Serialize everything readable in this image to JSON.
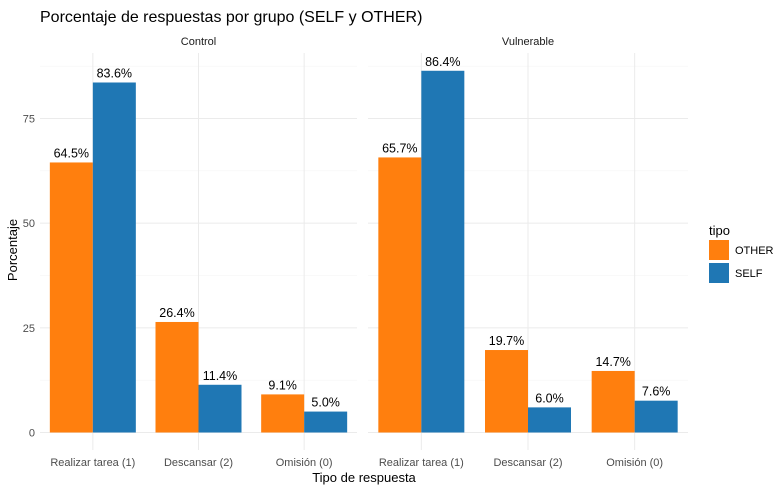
{
  "chart_data": {
    "type": "bar",
    "title": "Porcentaje de respuestas por grupo (SELF y OTHER)",
    "xlabel": "Tipo de respuesta",
    "ylabel": "Porcentaje",
    "ylim": [
      0,
      90
    ],
    "yticks": [
      0,
      25,
      50,
      75
    ],
    "categories": [
      "Realizar tarea (1)",
      "Descansar (2)",
      "Omisión (0)"
    ],
    "grid": true,
    "legend": {
      "title": "tipo",
      "position": "right",
      "entries": [
        "OTHER",
        "SELF"
      ]
    },
    "colors": {
      "OTHER": "#ff7f0e",
      "SELF": "#1f77b4"
    },
    "panels": [
      {
        "name": "Control",
        "series": [
          {
            "name": "OTHER",
            "values": [
              64.5,
              26.4,
              9.1
            ],
            "labels": [
              "64.5%",
              "26.4%",
              "9.1%"
            ]
          },
          {
            "name": "SELF",
            "values": [
              83.6,
              11.4,
              5.0
            ],
            "labels": [
              "83.6%",
              "11.4%",
              "5.0%"
            ]
          }
        ]
      },
      {
        "name": "Vulnerable",
        "series": [
          {
            "name": "OTHER",
            "values": [
              65.7,
              19.7,
              14.7
            ],
            "labels": [
              "65.7%",
              "19.7%",
              "14.7%"
            ]
          },
          {
            "name": "SELF",
            "values": [
              86.4,
              6.0,
              7.6
            ],
            "labels": [
              "86.4%",
              "6.0%",
              "7.6%"
            ]
          }
        ]
      }
    ]
  }
}
